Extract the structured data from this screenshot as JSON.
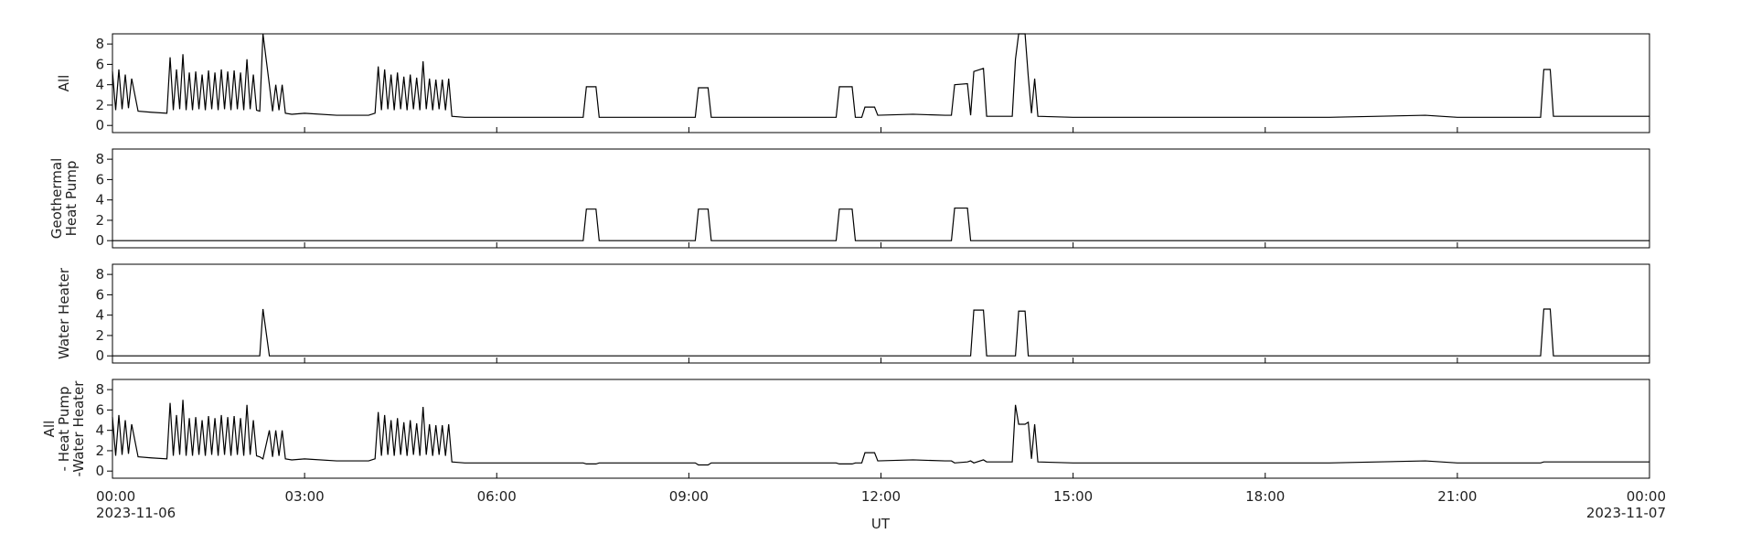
{
  "chart_data": {
    "type": "line",
    "color": "#000000",
    "xlabel": "UT",
    "xlim": [
      0,
      24
    ],
    "xticks": [
      {
        "value": 0,
        "label": "00:00"
      },
      {
        "value": 3,
        "label": "03:00"
      },
      {
        "value": 6,
        "label": "06:00"
      },
      {
        "value": 9,
        "label": "09:00"
      },
      {
        "value": 12,
        "label": "12:00"
      },
      {
        "value": 15,
        "label": "15:00"
      },
      {
        "value": 18,
        "label": "18:00"
      },
      {
        "value": 21,
        "label": "21:00"
      },
      {
        "value": 24,
        "label": "00:00"
      }
    ],
    "annotations": [
      {
        "x": 0,
        "label": "2023-11-06"
      },
      {
        "x": 24,
        "label": "2023-11-07"
      }
    ],
    "ylim": [
      -0.7,
      9
    ],
    "yticks": [
      0,
      2,
      4,
      6,
      8
    ],
    "x": [
      0,
      0.05,
      0.1,
      0.15,
      0.2,
      0.25,
      0.3,
      0.4,
      0.6,
      0.85,
      0.9,
      0.95,
      1.0,
      1.05,
      1.1,
      1.15,
      1.2,
      1.25,
      1.3,
      1.35,
      1.4,
      1.45,
      1.5,
      1.55,
      1.6,
      1.65,
      1.7,
      1.75,
      1.8,
      1.85,
      1.9,
      1.95,
      2.0,
      2.05,
      2.1,
      2.15,
      2.2,
      2.25,
      2.3,
      2.35,
      2.45,
      2.5,
      2.55,
      2.6,
      2.65,
      2.7,
      2.8,
      3.0,
      3.5,
      4.0,
      4.1,
      4.15,
      4.2,
      4.25,
      4.3,
      4.35,
      4.4,
      4.45,
      4.5,
      4.55,
      4.6,
      4.65,
      4.7,
      4.75,
      4.8,
      4.85,
      4.9,
      4.95,
      5.0,
      5.05,
      5.1,
      5.15,
      5.2,
      5.25,
      5.3,
      5.5,
      6.0,
      6.5,
      7.0,
      7.35,
      7.4,
      7.55,
      7.6,
      8.0,
      8.5,
      9.1,
      9.15,
      9.3,
      9.35,
      10.0,
      11.0,
      11.3,
      11.35,
      11.55,
      11.6,
      11.7,
      11.75,
      11.9,
      11.95,
      12.5,
      13.0,
      13.1,
      13.15,
      13.35,
      13.4,
      13.45,
      13.6,
      13.65,
      14.05,
      14.1,
      14.15,
      14.2,
      14.25,
      14.3,
      14.35,
      14.4,
      14.45,
      15.0,
      17.0,
      19.0,
      20.5,
      21.0,
      22.0,
      22.3,
      22.35,
      22.45,
      22.5,
      23.0,
      24
    ],
    "series": [
      {
        "name_lines": [
          "All"
        ],
        "values": [
          5.3,
          1.5,
          5.5,
          1.6,
          5.0,
          1.7,
          4.6,
          1.4,
          1.3,
          1.2,
          6.7,
          1.5,
          5.5,
          1.6,
          7.0,
          1.5,
          5.2,
          1.5,
          5.3,
          1.6,
          5.0,
          1.5,
          5.4,
          1.6,
          5.2,
          1.5,
          5.5,
          1.6,
          5.3,
          1.5,
          5.4,
          1.6,
          5.2,
          1.5,
          6.5,
          1.6,
          5.0,
          1.5,
          1.4,
          9.0,
          4.0,
          1.4,
          4.0,
          1.5,
          4.0,
          1.2,
          1.1,
          1.2,
          1.0,
          1.0,
          1.2,
          5.8,
          1.5,
          5.5,
          1.6,
          5.0,
          1.5,
          5.2,
          1.6,
          4.8,
          1.5,
          5.0,
          1.6,
          4.7,
          1.5,
          6.3,
          1.6,
          4.6,
          1.5,
          4.5,
          1.6,
          4.5,
          1.5,
          4.6,
          0.9,
          0.8,
          0.8,
          0.8,
          0.8,
          0.8,
          3.8,
          3.8,
          0.8,
          0.8,
          0.8,
          0.8,
          3.7,
          3.7,
          0.8,
          0.8,
          0.8,
          0.8,
          3.8,
          3.8,
          0.8,
          0.8,
          1.8,
          1.8,
          1.0,
          1.1,
          1.0,
          1.0,
          4.0,
          4.1,
          1.0,
          5.3,
          5.6,
          0.9,
          0.9,
          6.5,
          9.0,
          9.0,
          9.0,
          4.8,
          1.2,
          4.6,
          0.9,
          0.8,
          0.8,
          0.8,
          1.0,
          0.8,
          0.8,
          0.8,
          5.5,
          5.5,
          0.9,
          0.9,
          0.9
        ]
      },
      {
        "name_lines": [
          "Geothermal",
          "Heat Pump"
        ],
        "values": [
          0,
          0,
          0,
          0,
          0,
          0,
          0,
          0,
          0,
          0,
          0,
          0,
          0,
          0,
          0,
          0,
          0,
          0,
          0,
          0,
          0,
          0,
          0,
          0,
          0,
          0,
          0,
          0,
          0,
          0,
          0,
          0,
          0,
          0,
          0,
          0,
          0,
          0,
          0,
          0,
          0,
          0,
          0,
          0,
          0,
          0,
          0,
          0,
          0,
          0,
          0,
          0,
          0,
          0,
          0,
          0,
          0,
          0,
          0,
          0,
          0,
          0,
          0,
          0,
          0,
          0,
          0,
          0,
          0,
          0,
          0,
          0,
          0,
          0,
          0,
          0,
          0,
          0,
          0,
          0,
          3.1,
          3.1,
          0,
          0,
          0,
          0,
          3.1,
          3.1,
          0,
          0,
          0,
          0,
          3.1,
          3.1,
          0,
          0,
          0,
          0,
          0,
          0,
          0,
          0,
          3.2,
          3.2,
          0,
          0,
          0,
          0,
          0,
          0,
          0,
          0,
          0,
          0,
          0,
          0,
          0,
          0,
          0,
          0,
          0,
          0,
          0,
          0,
          0,
          0,
          0,
          0,
          0
        ]
      },
      {
        "name_lines": [
          "Water Heater"
        ],
        "values": [
          0,
          0,
          0,
          0,
          0,
          0,
          0,
          0,
          0,
          0,
          0,
          0,
          0,
          0,
          0,
          0,
          0,
          0,
          0,
          0,
          0,
          0,
          0,
          0,
          0,
          0,
          0,
          0,
          0,
          0,
          0,
          0,
          0,
          0,
          0,
          0,
          0,
          0,
          0,
          4.6,
          0,
          0,
          0,
          0,
          0,
          0,
          0,
          0,
          0,
          0,
          0,
          0,
          0,
          0,
          0,
          0,
          0,
          0,
          0,
          0,
          0,
          0,
          0,
          0,
          0,
          0,
          0,
          0,
          0,
          0,
          0,
          0,
          0,
          0,
          0,
          0,
          0,
          0,
          0,
          0,
          0,
          0,
          0,
          0,
          0,
          0,
          0,
          0,
          0,
          0,
          0,
          0,
          0,
          0,
          0,
          0,
          0,
          0,
          0,
          0,
          0,
          0,
          0,
          0,
          0,
          4.5,
          4.5,
          0,
          0,
          0,
          4.4,
          4.4,
          4.4,
          0,
          0,
          0,
          0,
          0,
          0,
          0,
          0,
          0,
          0,
          0,
          4.6,
          4.6,
          0,
          0,
          0
        ]
      },
      {
        "name_lines": [
          "All",
          "- Heat Pump",
          "-Water Heater"
        ],
        "values": [
          5.3,
          1.5,
          5.5,
          1.6,
          5.0,
          1.7,
          4.6,
          1.4,
          1.3,
          1.2,
          6.7,
          1.5,
          5.5,
          1.6,
          7.0,
          1.5,
          5.2,
          1.5,
          5.3,
          1.6,
          5.0,
          1.5,
          5.4,
          1.6,
          5.2,
          1.5,
          5.5,
          1.6,
          5.3,
          1.5,
          5.4,
          1.6,
          5.2,
          1.5,
          6.5,
          1.6,
          5.0,
          1.5,
          1.4,
          1.2,
          4.0,
          1.4,
          4.0,
          1.5,
          4.0,
          1.2,
          1.1,
          1.2,
          1.0,
          1.0,
          1.2,
          5.8,
          1.5,
          5.5,
          1.6,
          5.0,
          1.5,
          5.2,
          1.6,
          4.8,
          1.5,
          5.0,
          1.6,
          4.7,
          1.5,
          6.3,
          1.6,
          4.6,
          1.5,
          4.5,
          1.6,
          4.5,
          1.5,
          4.6,
          0.9,
          0.8,
          0.8,
          0.8,
          0.8,
          0.8,
          0.7,
          0.7,
          0.8,
          0.8,
          0.8,
          0.8,
          0.6,
          0.6,
          0.8,
          0.8,
          0.8,
          0.8,
          0.7,
          0.7,
          0.8,
          0.8,
          1.8,
          1.8,
          1.0,
          1.1,
          1.0,
          1.0,
          0.8,
          0.9,
          1.0,
          0.8,
          1.1,
          0.9,
          0.9,
          6.5,
          4.6,
          4.6,
          4.6,
          4.8,
          1.2,
          4.6,
          0.9,
          0.8,
          0.8,
          0.8,
          1.0,
          0.8,
          0.8,
          0.8,
          0.9,
          0.9,
          0.9,
          0.9,
          0.9
        ]
      }
    ]
  }
}
